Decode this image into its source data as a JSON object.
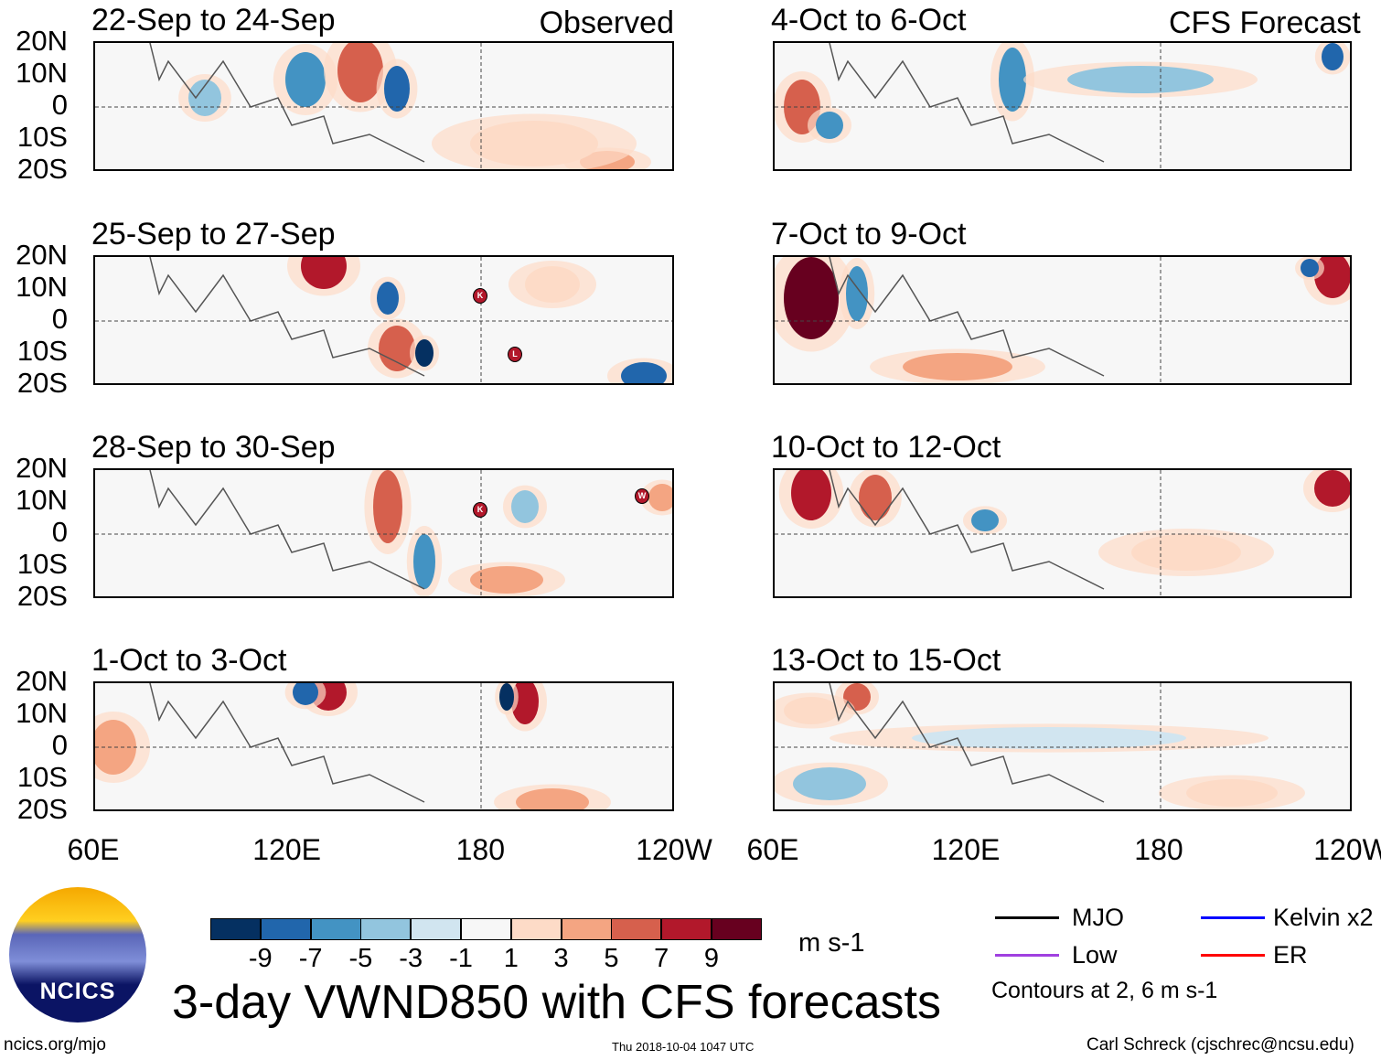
{
  "panels_left": [
    {
      "title": "22-Sep to 24-Sep",
      "label": "Observed"
    },
    {
      "title": "25-Sep to 27-Sep"
    },
    {
      "title": "28-Sep to 30-Sep"
    },
    {
      "title": "1-Oct to 3-Oct"
    }
  ],
  "panels_right": [
    {
      "title": "4-Oct to 6-Oct",
      "label": "CFS Forecast"
    },
    {
      "title": "7-Oct to 9-Oct"
    },
    {
      "title": "10-Oct to 12-Oct"
    },
    {
      "title": "13-Oct to 15-Oct"
    }
  ],
  "lat_labels": [
    "20N",
    "10N",
    "0",
    "10S",
    "20S"
  ],
  "lon_labels": [
    "60E",
    "120E",
    "180",
    "120W"
  ],
  "storm_markers": [
    "K",
    "L",
    "K",
    "W"
  ],
  "colorbar": {
    "colors": [
      "#053061",
      "#2166ac",
      "#4393c3",
      "#92c5de",
      "#d1e5f0",
      "#f7f7f7",
      "#fddbc7",
      "#f4a582",
      "#d6604d",
      "#b2182b",
      "#67001f"
    ],
    "labels": [
      "-9",
      "-7",
      "-5",
      "-3",
      "-1",
      "1",
      "3",
      "5",
      "7",
      "9"
    ],
    "units": "m s-1"
  },
  "title": "3-day VWND850 with CFS forecasts",
  "legend": {
    "items": [
      {
        "label": "MJO",
        "color": "#000000"
      },
      {
        "label": "Kelvin x2",
        "color": "#0000ff"
      },
      {
        "label": "Low",
        "color": "#a040e0"
      },
      {
        "label": "ER",
        "color": "#ff0000"
      }
    ],
    "note": "Contours at 2, 6 m s-1"
  },
  "logo_text": "NCICS",
  "footer": {
    "left": "ncics.org/mjo",
    "center": "Thu 2018-10-04 1047 UTC",
    "right": "Carl Schreck (cjschrec@ncsu.edu)"
  }
}
